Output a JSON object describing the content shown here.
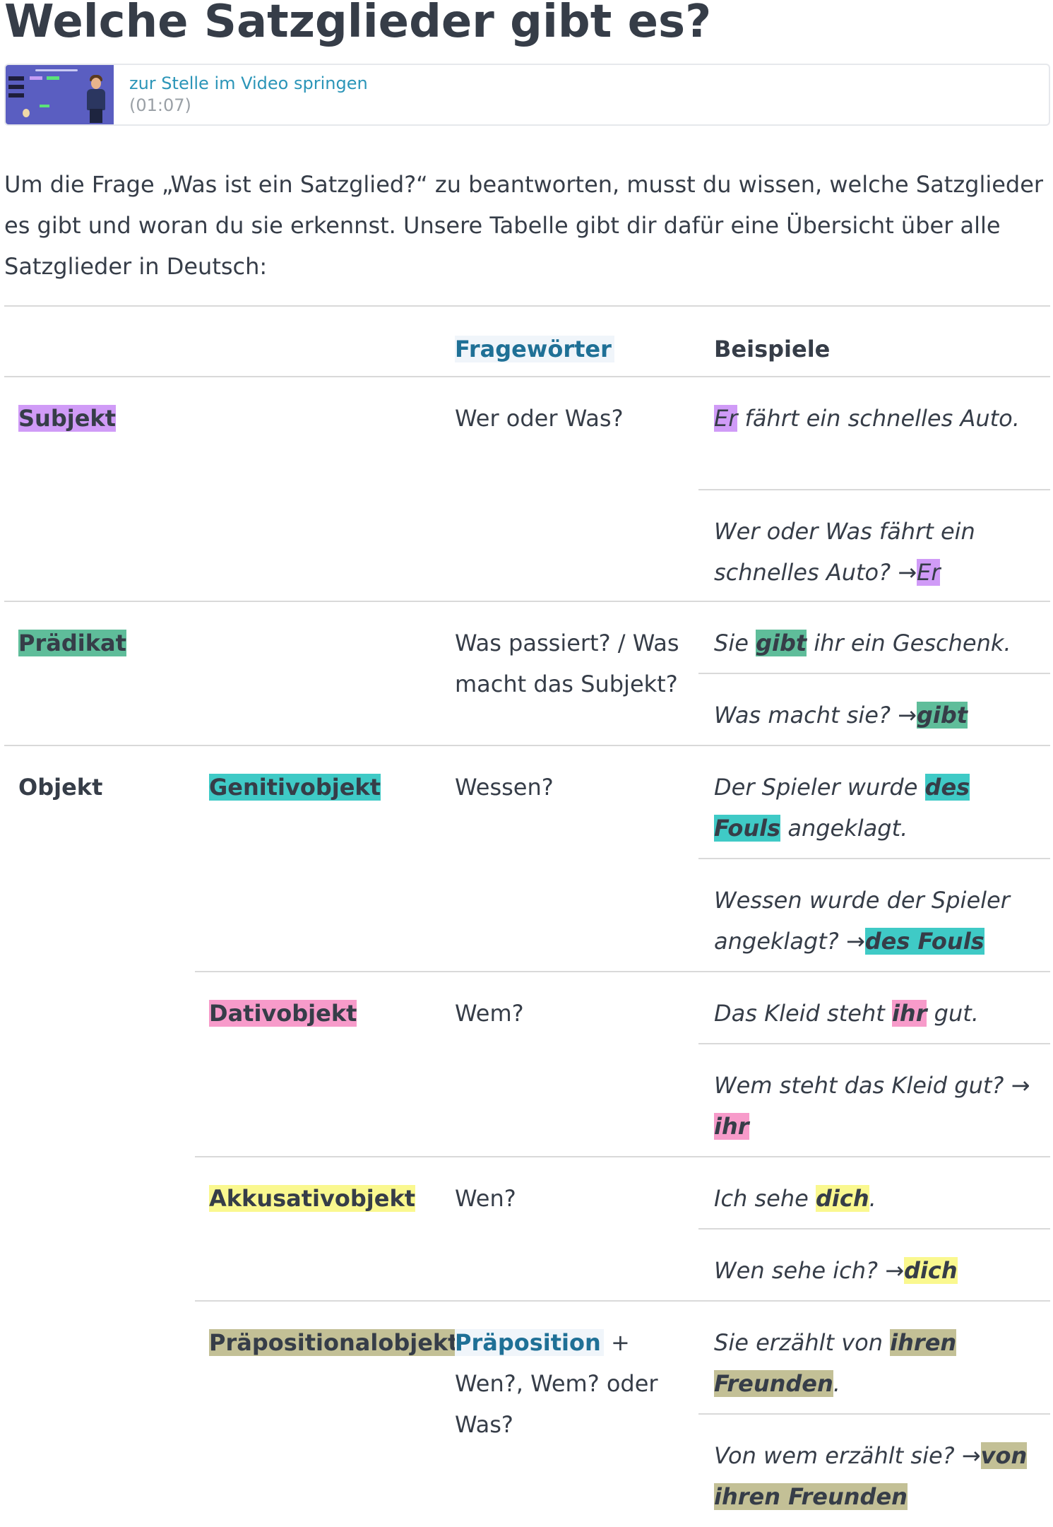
{
  "heading": "Welche Satzglieder gibt es?",
  "video": {
    "link_text": "zur Stelle im Video springen",
    "timestamp": "(01:07)",
    "thumbnail_icon": "video-thumbnail-icon"
  },
  "intro_text": "Um die Frage „Was ist ein Satzglied?“ zu beantworten, musst du wissen, welche Satzglieder es gibt und woran du sie erkennst. Unsere Tabelle gibt dir dafür eine Übersicht über alle Satzglieder in Deutsch:",
  "colors": {
    "subjekt": "#d09bf7",
    "praedikat": "#5fbd9a",
    "genitivobjekt": "#3fcac6",
    "dativobjekt": "#f79bca",
    "akkusativobjekt": "#faf88f",
    "praepositionalobjekt": "#c3c096",
    "link": "#2b95b8"
  },
  "table": {
    "header_fragewoerter": "Fragewörter",
    "header_beispiele": "Beispiele",
    "subjekt": {
      "label": "Subjekt",
      "question": "Wer oder Was?",
      "ex1_hl": "Er",
      "ex1_rest": " fährt ein schnelles Auto.",
      "ex2_text": "Wer oder Was fährt ein schnelles Auto? ",
      "ex2_arrow": "→",
      "ex2_hl": "Er"
    },
    "praedikat": {
      "label": "Prädikat",
      "question": "Was passiert? / Was macht das Subjekt?",
      "ex1_pre": "Sie ",
      "ex1_hl": "gibt",
      "ex1_post": " ihr ein Geschenk.",
      "ex2_text": "Was macht sie? ",
      "ex2_arrow": "→",
      "ex2_hl": "gibt"
    },
    "objekt_label": "Objekt",
    "genitiv": {
      "label": "Genitivobjekt",
      "question": "Wessen?",
      "ex1_pre": "Der Spieler wurde ",
      "ex1_hl": "des Fouls",
      "ex1_post": " angeklagt.",
      "ex2_text": "Wessen wurde der Spieler angeklagt? ",
      "ex2_arrow": "→",
      "ex2_hl": "des Fouls"
    },
    "dativ": {
      "label": "Dativobjekt",
      "question": "Wem?",
      "ex1_pre": "Das Kleid steht ",
      "ex1_hl": "ihr",
      "ex1_post": " gut.",
      "ex2_text": "Wem steht das Kleid gut? ",
      "ex2_arrow": "→",
      "ex2_hl": "ihr"
    },
    "akkusativ": {
      "label": "Akkusativobjekt",
      "question": "Wen?",
      "ex1_pre": "Ich sehe ",
      "ex1_hl": "dich",
      "ex1_post": ".",
      "ex2_text": "Wen sehe ich? ",
      "ex2_arrow": "→",
      "ex2_hl": "dich"
    },
    "praeposition": {
      "label": "Präpositionalobjekt",
      "question_link": "Präposition",
      "question_rest": " + Wen?, Wem? oder Was?",
      "ex1_pre": "Sie erzählt von ",
      "ex1_hl": "ihren Freunden",
      "ex1_post": ".",
      "ex2_text": "Von wem erzählt sie? ",
      "ex2_arrow": "→",
      "ex2_hl": "von ihren Freunden"
    }
  }
}
